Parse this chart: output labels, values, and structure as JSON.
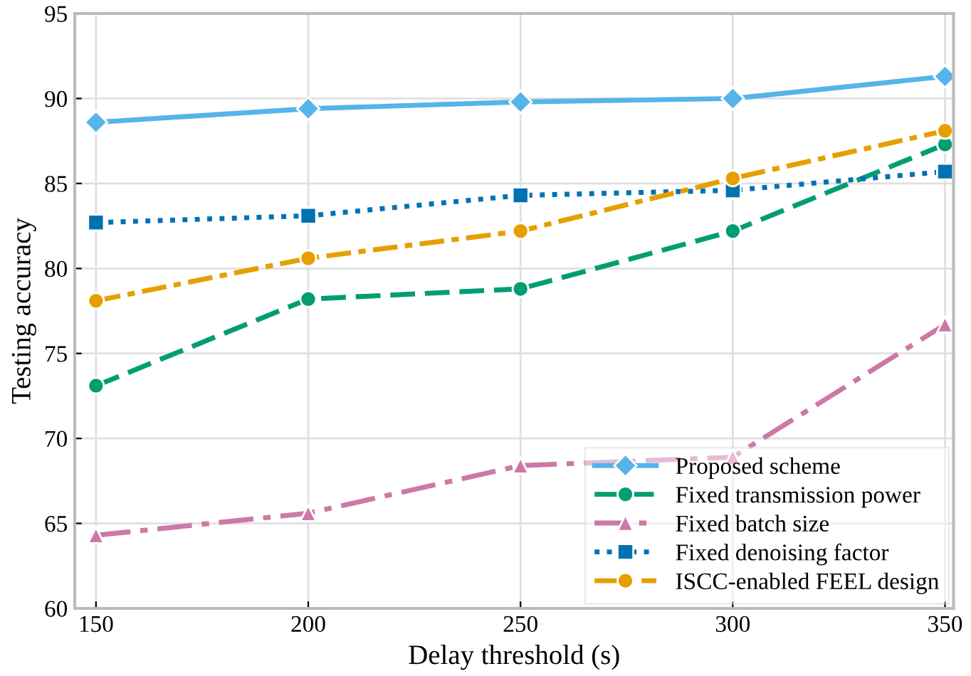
{
  "chart_data": {
    "type": "line",
    "xlabel": "Delay threshold (s)",
    "ylabel": "Testing accuracy",
    "x": [
      150,
      200,
      250,
      300,
      350
    ],
    "xlim": [
      145,
      352
    ],
    "xticks": [
      150,
      200,
      250,
      300,
      350
    ],
    "ylim": [
      60,
      95
    ],
    "yticks": [
      60,
      65,
      70,
      75,
      80,
      85,
      90,
      95
    ],
    "grid": true,
    "legend": "bottom right",
    "series": [
      {
        "name": "Proposed scheme",
        "color": "#56b4e9",
        "marker": "diamond",
        "line_style": "solid",
        "values": [
          88.6,
          89.4,
          89.8,
          90.0,
          91.3
        ]
      },
      {
        "name": "Fixed transmission power",
        "color": "#009e73",
        "marker": "circle",
        "line_style": "dashed",
        "values": [
          73.1,
          78.2,
          78.8,
          82.2,
          87.3
        ]
      },
      {
        "name": "Fixed batch size",
        "color": "#cc79a7",
        "marker": "triangle",
        "line_style": "dashdot",
        "values": [
          64.3,
          65.6,
          68.4,
          68.9,
          76.7
        ]
      },
      {
        "name": "Fixed denoising factor",
        "color": "#0072b2",
        "marker": "square",
        "line_style": "dotted",
        "values": [
          82.7,
          83.1,
          84.3,
          84.6,
          85.7
        ]
      },
      {
        "name": "ISCC-enabled FEEL design",
        "color": "#e69f00",
        "marker": "circle",
        "line_style": "dashdotdot",
        "values": [
          78.1,
          80.6,
          82.2,
          85.3,
          88.1
        ]
      }
    ]
  }
}
